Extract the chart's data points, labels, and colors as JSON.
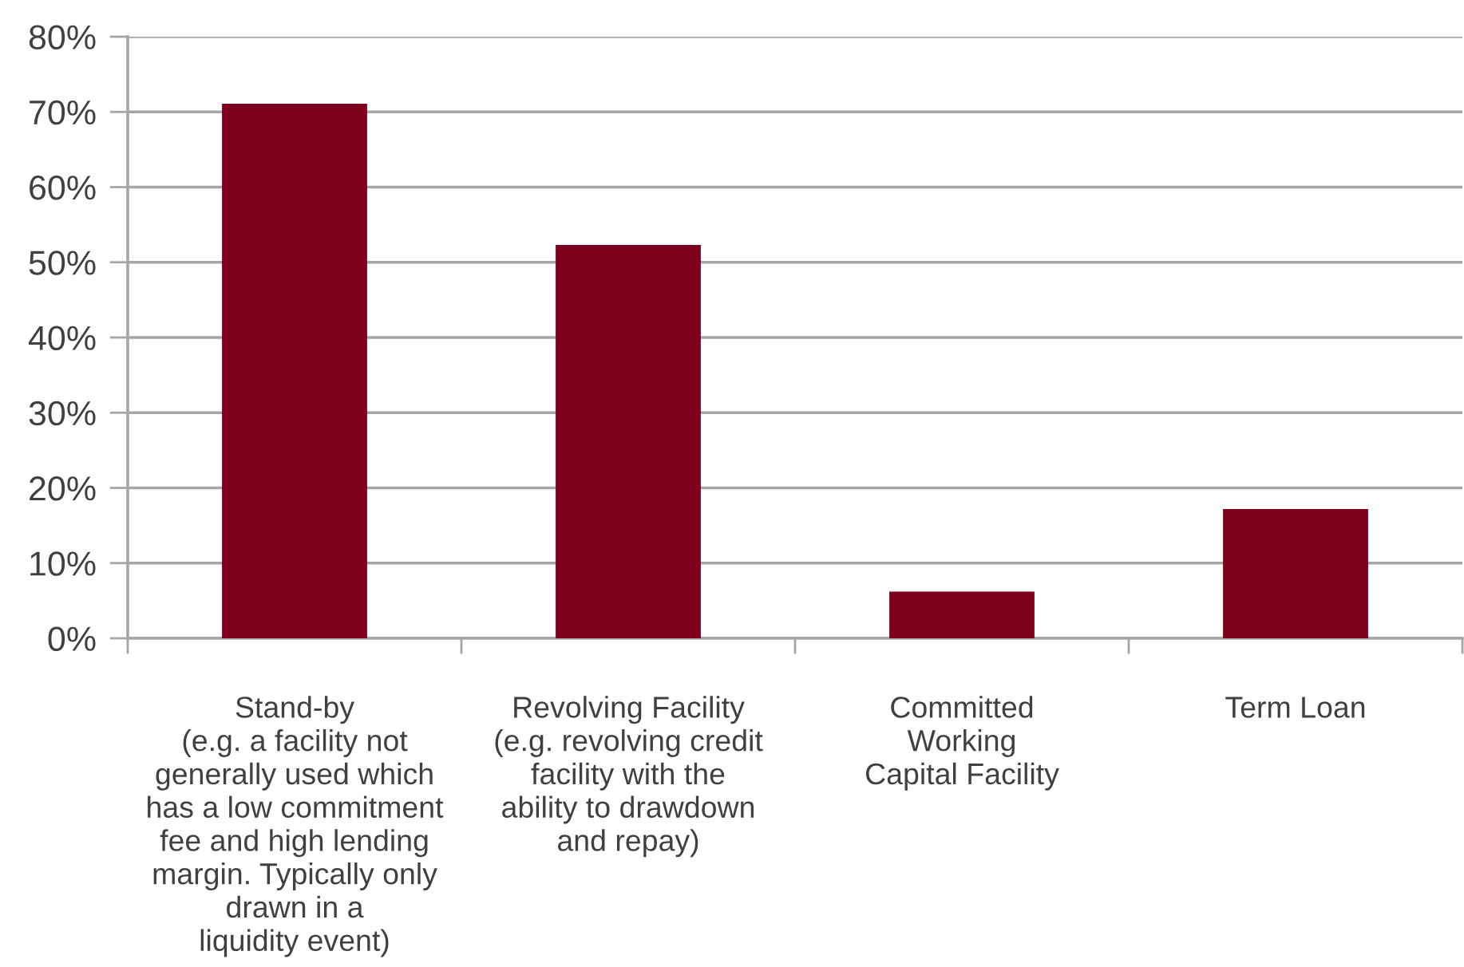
{
  "chart_data": {
    "type": "bar",
    "categories": [
      "Stand-by\n(e.g. a facility not\ngenerally used which\nhas a low commitment\nfee and high lending\nmargin. Typically only\ndrawn in a\nliquidity event)",
      "Revolving Facility\n(e.g. revolving credit\nfacility with the\nability to drawdown\nand repay)",
      "Committed\nWorking\nCapital Facility",
      "Term Loan"
    ],
    "values": [
      71.1,
      52.3,
      6.2,
      17.2
    ],
    "color": "#7f001c",
    "ylim": [
      0,
      80
    ],
    "yticks": [
      {
        "value": 0,
        "label": "0%"
      },
      {
        "value": 10,
        "label": "10%"
      },
      {
        "value": 20,
        "label": "20%"
      },
      {
        "value": 30,
        "label": "30%"
      },
      {
        "value": 40,
        "label": "40%"
      },
      {
        "value": 50,
        "label": "50%"
      },
      {
        "value": 60,
        "label": "60%"
      },
      {
        "value": 70,
        "label": "70%"
      },
      {
        "value": 80,
        "label": "80%"
      }
    ],
    "grid": "y"
  }
}
